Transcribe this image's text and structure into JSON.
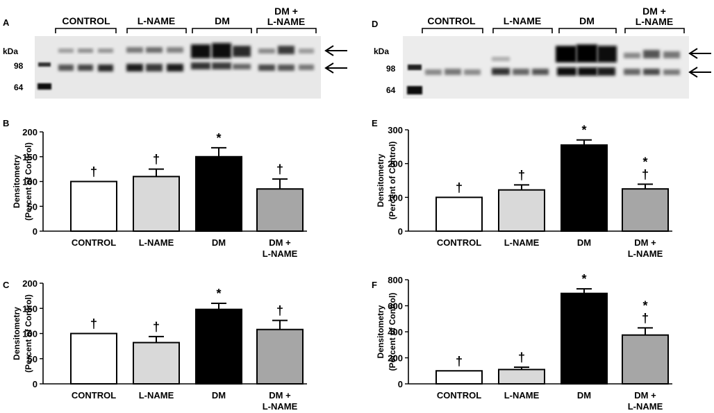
{
  "panels": {
    "A": {
      "letter": "A",
      "group_labels": [
        "CONTROL",
        "L-NAME",
        "DM",
        "DM +",
        "L-NAME"
      ],
      "kda_label": "kDa",
      "markers": [
        "98",
        "64"
      ]
    },
    "D": {
      "letter": "D",
      "group_labels": [
        "CONTROL",
        "L-NAME",
        "DM",
        "DM +",
        "L-NAME"
      ],
      "kda_label": "kDa",
      "markers": [
        "98",
        "64"
      ]
    }
  },
  "colors": {
    "control": "#ffffff",
    "lname": "#d9d9d9",
    "dm": "#000000",
    "dmlname": "#a6a6a6"
  },
  "chart_data": [
    {
      "id": "B",
      "type": "bar",
      "letter": "B",
      "ylabel": [
        "Densitometry",
        "(Percent of Control)"
      ],
      "categories": [
        "CONTROL",
        "L-NAME",
        "DM",
        "DM +\nL-NAME"
      ],
      "values": [
        100,
        110,
        150,
        85
      ],
      "errors": [
        0,
        15,
        18,
        20
      ],
      "annotations": [
        "†",
        "†",
        "*",
        "†"
      ],
      "ylim": [
        0,
        200
      ],
      "yticks": [
        0,
        50,
        100,
        150,
        200
      ]
    },
    {
      "id": "C",
      "type": "bar",
      "letter": "C",
      "ylabel": [
        "Densitometry",
        "(Percent of Control)"
      ],
      "categories": [
        "CONTROL",
        "L-NAME",
        "DM",
        "DM +\nL-NAME"
      ],
      "values": [
        100,
        82,
        148,
        108
      ],
      "errors": [
        0,
        12,
        12,
        18
      ],
      "annotations": [
        "†",
        "†",
        "*",
        "†"
      ],
      "ylim": [
        0,
        200
      ],
      "yticks": [
        0,
        50,
        100,
        150,
        200
      ]
    },
    {
      "id": "E",
      "type": "bar",
      "letter": "E",
      "ylabel": [
        "Densitometry",
        "(Percent of Control)"
      ],
      "categories": [
        "CONTROL",
        "L-NAME",
        "DM",
        "DM +\nL-NAME"
      ],
      "values": [
        100,
        122,
        255,
        125
      ],
      "errors": [
        0,
        15,
        15,
        14
      ],
      "annotations": [
        "†",
        "†",
        "*",
        "*\n†"
      ],
      "ylim": [
        0,
        300
      ],
      "yticks": [
        0,
        100,
        200,
        300
      ]
    },
    {
      "id": "F",
      "type": "bar",
      "letter": "F",
      "ylabel": [
        "Densitometry",
        "(Percent of Control)"
      ],
      "categories": [
        "CONTROL",
        "L-NAME",
        "DM",
        "DM +\nL-NAME"
      ],
      "values": [
        100,
        110,
        695,
        375
      ],
      "errors": [
        0,
        18,
        35,
        55
      ],
      "annotations": [
        "†",
        "†",
        "*",
        "*\n†"
      ],
      "ylim": [
        0,
        800
      ],
      "yticks": [
        0,
        200,
        400,
        600,
        800
      ]
    }
  ]
}
